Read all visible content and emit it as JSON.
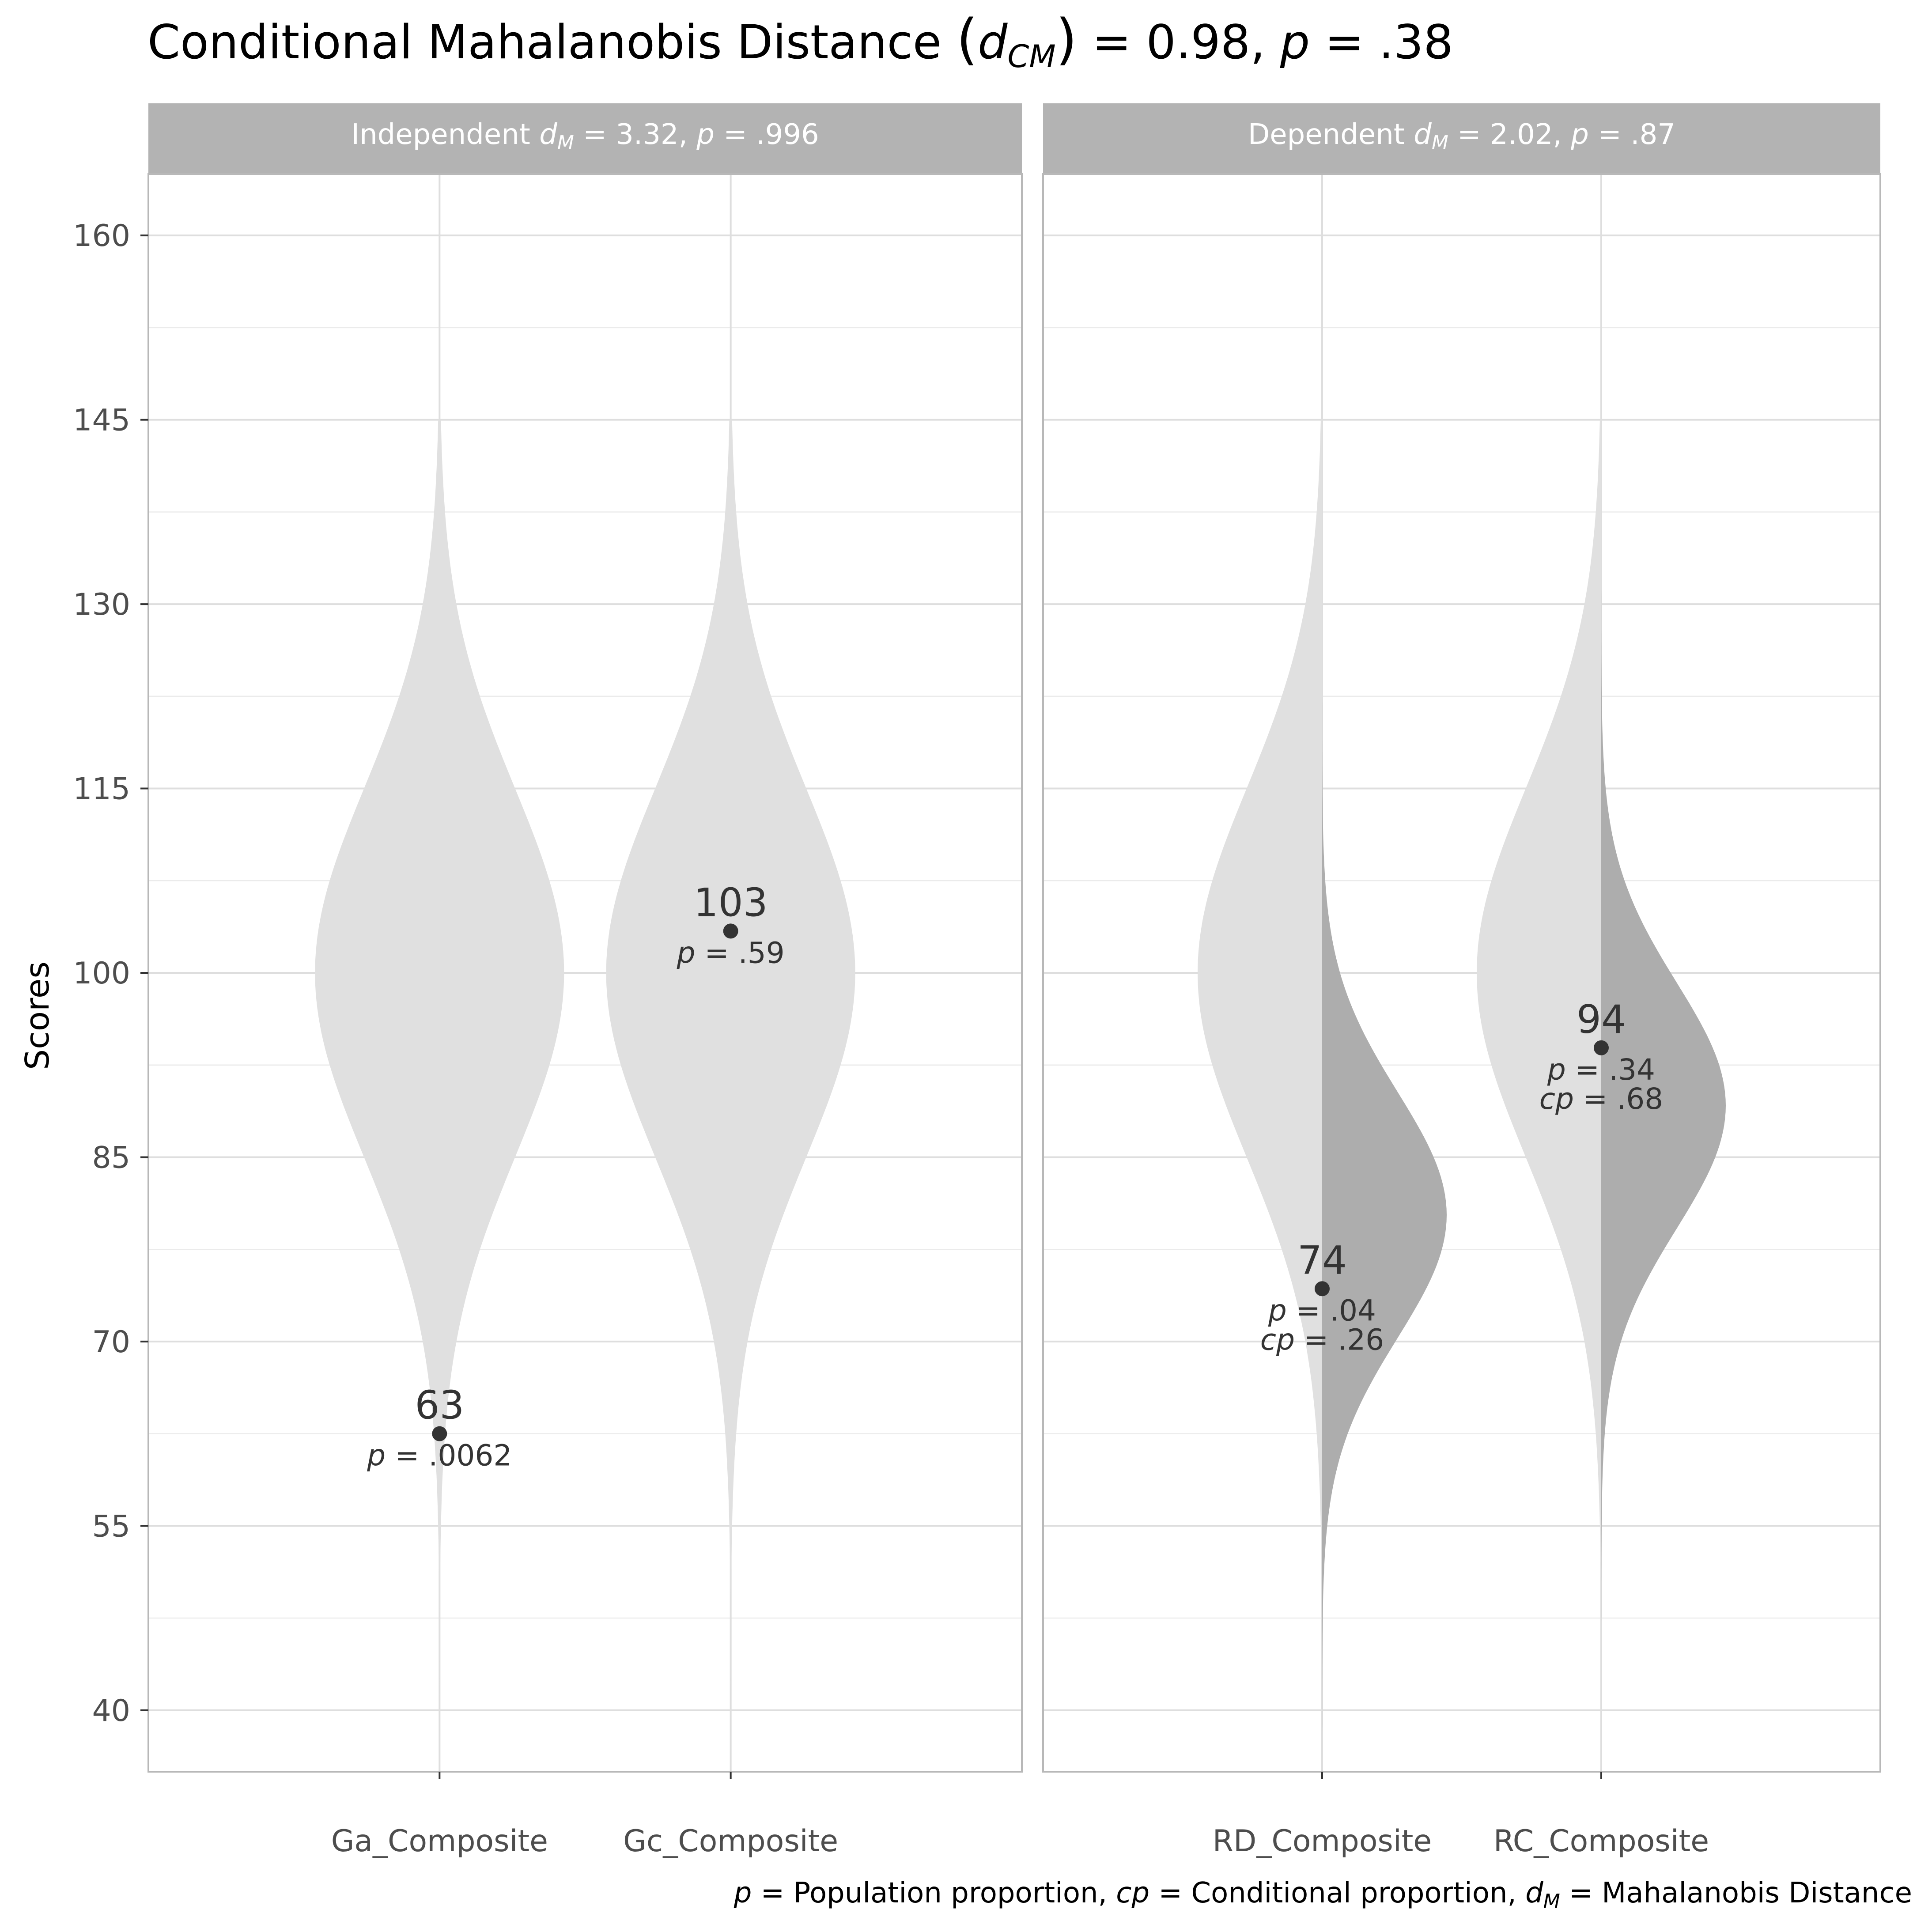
{
  "chart_data": {
    "type": "violin",
    "title": {
      "prefix": "Conditional Mahalanobis Distance ",
      "symbol": "d",
      "subscript": "CM",
      "value": "0.98",
      "p_symbol": "p",
      "p_value": ".38"
    },
    "ylabel": "Scores",
    "ylim": [
      35,
      165
    ],
    "yticks": [
      40,
      55,
      70,
      85,
      100,
      115,
      130,
      145,
      160
    ],
    "grid": true,
    "caption": {
      "p_def": "Population proportion, ",
      "cp_def": "Conditional proportion, ",
      "dm_def": "Mahalanobis Distance"
    },
    "colors": {
      "population": "#e0e0e0",
      "conditional": "#adadad",
      "point": "#333333",
      "strip": "#b3b3b3",
      "grid_major": "#dedede",
      "grid_minor": "#ebebeb",
      "border": "#b8b8b8"
    },
    "panels": [
      {
        "strip": {
          "prefix": "Independent ",
          "dm_value": "3.32",
          "p_value": ".996"
        },
        "variables": [
          {
            "name": "Ga_Composite",
            "population": {
              "mean": 100,
              "sd": 15
            },
            "score_label": "63",
            "score": 62.5,
            "p_label": ".0062",
            "cp_label": null
          },
          {
            "name": "Gc_Composite",
            "population": {
              "mean": 100,
              "sd": 15
            },
            "score_label": "103",
            "score": 103.4,
            "p_label": ".59",
            "cp_label": null
          }
        ]
      },
      {
        "strip": {
          "prefix": "Dependent ",
          "dm_value": "2.02",
          "p_value": ".87"
        },
        "variables": [
          {
            "name": "RD_Composite",
            "population": {
              "mean": 100,
              "sd": 15
            },
            "conditional": {
              "mean": 80.3,
              "sd": 10
            },
            "score_label": "74",
            "score": 74.3,
            "p_label": ".04",
            "cp_label": ".26"
          },
          {
            "name": "RC_Composite",
            "population": {
              "mean": 100,
              "sd": 15
            },
            "conditional": {
              "mean": 89.2,
              "sd": 10
            },
            "score_label": "94",
            "score": 93.9,
            "p_label": ".34",
            "cp_label": ".68"
          }
        ]
      }
    ]
  }
}
